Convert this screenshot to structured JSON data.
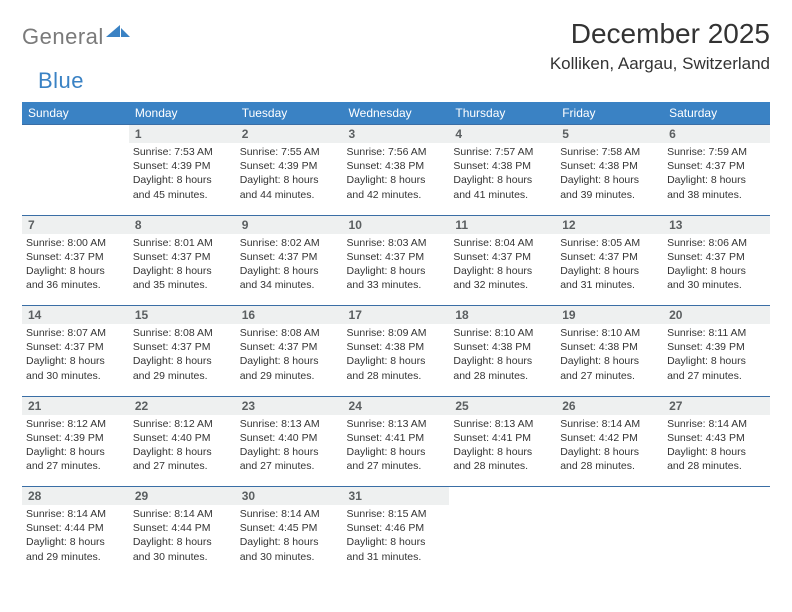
{
  "logo": {
    "word1": "General",
    "word2": "Blue",
    "brand_color": "#3a82c4",
    "gray": "#7a7a7a"
  },
  "title": "December 2025",
  "location": "Kolliken, Aargau, Switzerland",
  "colors": {
    "header_bg": "#3a82c4",
    "header_text": "#ffffff",
    "daynum_bg": "#eef0f0",
    "daynum_border": "#3a6ea5",
    "daynum_text": "#5b5f61",
    "body_text": "#343434",
    "page_bg": "#ffffff"
  },
  "weekdays": [
    "Sunday",
    "Monday",
    "Tuesday",
    "Wednesday",
    "Thursday",
    "Friday",
    "Saturday"
  ],
  "weeks": [
    {
      "nums": [
        "",
        "1",
        "2",
        "3",
        "4",
        "5",
        "6"
      ],
      "cells": [
        null,
        {
          "sunrise": "7:53 AM",
          "sunset": "4:39 PM",
          "daylight": "8 hours and 45 minutes."
        },
        {
          "sunrise": "7:55 AM",
          "sunset": "4:39 PM",
          "daylight": "8 hours and 44 minutes."
        },
        {
          "sunrise": "7:56 AM",
          "sunset": "4:38 PM",
          "daylight": "8 hours and 42 minutes."
        },
        {
          "sunrise": "7:57 AM",
          "sunset": "4:38 PM",
          "daylight": "8 hours and 41 minutes."
        },
        {
          "sunrise": "7:58 AM",
          "sunset": "4:38 PM",
          "daylight": "8 hours and 39 minutes."
        },
        {
          "sunrise": "7:59 AM",
          "sunset": "4:37 PM",
          "daylight": "8 hours and 38 minutes."
        }
      ]
    },
    {
      "nums": [
        "7",
        "8",
        "9",
        "10",
        "11",
        "12",
        "13"
      ],
      "cells": [
        {
          "sunrise": "8:00 AM",
          "sunset": "4:37 PM",
          "daylight": "8 hours and 36 minutes."
        },
        {
          "sunrise": "8:01 AM",
          "sunset": "4:37 PM",
          "daylight": "8 hours and 35 minutes."
        },
        {
          "sunrise": "8:02 AM",
          "sunset": "4:37 PM",
          "daylight": "8 hours and 34 minutes."
        },
        {
          "sunrise": "8:03 AM",
          "sunset": "4:37 PM",
          "daylight": "8 hours and 33 minutes."
        },
        {
          "sunrise": "8:04 AM",
          "sunset": "4:37 PM",
          "daylight": "8 hours and 32 minutes."
        },
        {
          "sunrise": "8:05 AM",
          "sunset": "4:37 PM",
          "daylight": "8 hours and 31 minutes."
        },
        {
          "sunrise": "8:06 AM",
          "sunset": "4:37 PM",
          "daylight": "8 hours and 30 minutes."
        }
      ]
    },
    {
      "nums": [
        "14",
        "15",
        "16",
        "17",
        "18",
        "19",
        "20"
      ],
      "cells": [
        {
          "sunrise": "8:07 AM",
          "sunset": "4:37 PM",
          "daylight": "8 hours and 30 minutes."
        },
        {
          "sunrise": "8:08 AM",
          "sunset": "4:37 PM",
          "daylight": "8 hours and 29 minutes."
        },
        {
          "sunrise": "8:08 AM",
          "sunset": "4:37 PM",
          "daylight": "8 hours and 29 minutes."
        },
        {
          "sunrise": "8:09 AM",
          "sunset": "4:38 PM",
          "daylight": "8 hours and 28 minutes."
        },
        {
          "sunrise": "8:10 AM",
          "sunset": "4:38 PM",
          "daylight": "8 hours and 28 minutes."
        },
        {
          "sunrise": "8:10 AM",
          "sunset": "4:38 PM",
          "daylight": "8 hours and 27 minutes."
        },
        {
          "sunrise": "8:11 AM",
          "sunset": "4:39 PM",
          "daylight": "8 hours and 27 minutes."
        }
      ]
    },
    {
      "nums": [
        "21",
        "22",
        "23",
        "24",
        "25",
        "26",
        "27"
      ],
      "cells": [
        {
          "sunrise": "8:12 AM",
          "sunset": "4:39 PM",
          "daylight": "8 hours and 27 minutes."
        },
        {
          "sunrise": "8:12 AM",
          "sunset": "4:40 PM",
          "daylight": "8 hours and 27 minutes."
        },
        {
          "sunrise": "8:13 AM",
          "sunset": "4:40 PM",
          "daylight": "8 hours and 27 minutes."
        },
        {
          "sunrise": "8:13 AM",
          "sunset": "4:41 PM",
          "daylight": "8 hours and 27 minutes."
        },
        {
          "sunrise": "8:13 AM",
          "sunset": "4:41 PM",
          "daylight": "8 hours and 28 minutes."
        },
        {
          "sunrise": "8:14 AM",
          "sunset": "4:42 PM",
          "daylight": "8 hours and 28 minutes."
        },
        {
          "sunrise": "8:14 AM",
          "sunset": "4:43 PM",
          "daylight": "8 hours and 28 minutes."
        }
      ]
    },
    {
      "nums": [
        "28",
        "29",
        "30",
        "31",
        "",
        "",
        ""
      ],
      "cells": [
        {
          "sunrise": "8:14 AM",
          "sunset": "4:44 PM",
          "daylight": "8 hours and 29 minutes."
        },
        {
          "sunrise": "8:14 AM",
          "sunset": "4:44 PM",
          "daylight": "8 hours and 30 minutes."
        },
        {
          "sunrise": "8:14 AM",
          "sunset": "4:45 PM",
          "daylight": "8 hours and 30 minutes."
        },
        {
          "sunrise": "8:15 AM",
          "sunset": "4:46 PM",
          "daylight": "8 hours and 31 minutes."
        },
        null,
        null,
        null
      ]
    }
  ],
  "labels": {
    "sunrise": "Sunrise:",
    "sunset": "Sunset:",
    "daylight": "Daylight:"
  }
}
